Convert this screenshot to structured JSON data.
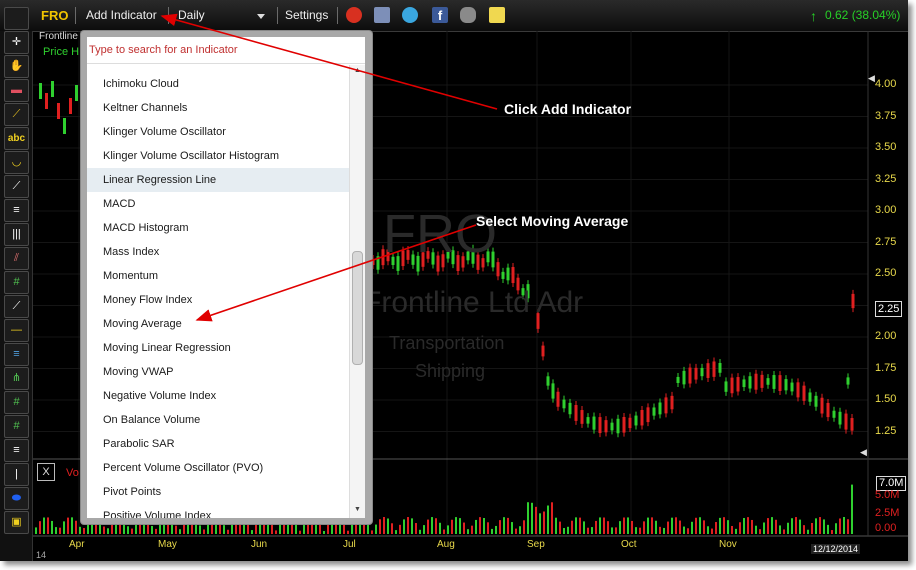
{
  "toolbar": {
    "symbol": "FRO",
    "add_indicator": "Add Indicator",
    "period": "Daily",
    "settings": "Settings",
    "change": "0.62 (38.04%)"
  },
  "chart_header": {
    "company_short": "Frontline",
    "price_label": "Price H"
  },
  "watermark": {
    "symbol": "FRO",
    "company": "Frontline Ltd Adr",
    "sector": "Transportation",
    "industry": "Shipping"
  },
  "price_axis": [
    "4.00",
    "3.75",
    "3.50",
    "3.25",
    "3.00",
    "2.75",
    "2.50",
    "2.25",
    "2.00",
    "1.75",
    "1.50",
    "1.25"
  ],
  "volume_panel": {
    "label": "Vo",
    "close_label": "X"
  },
  "volume_axis": [
    "7.0M",
    "5.0M",
    "2.5M",
    "0.00"
  ],
  "months": [
    "Apr",
    "May",
    "Jun",
    "Jul",
    "Aug",
    "Sep",
    "Oct",
    "Nov"
  ],
  "date_label": "12/12/2014",
  "corner_label": "14",
  "indicator_search": {
    "placeholder": "Type to search for an Indicator"
  },
  "indicators": [
    "Ichimoku Cloud",
    "Keltner Channels",
    "Klinger Volume Oscillator",
    "Klinger Volume Oscillator Histogram",
    "Linear Regression Line",
    "MACD",
    "MACD Histogram",
    "Mass Index",
    "Momentum",
    "Money Flow Index",
    "Moving Average",
    "Moving Linear Regression",
    "Moving VWAP",
    "Negative Volume Index",
    "On Balance Volume",
    "Parabolic SAR",
    "Percent Volume Oscillator (PVO)",
    "Pivot Points",
    "Positive Volume Index"
  ],
  "callouts": {
    "add_indicator": "Click Add Indicator",
    "moving_average": "Select Moving Average"
  },
  "colors": {
    "up": "#2fd02f",
    "down": "#e02020",
    "axis": "#e8d94b",
    "change": "#27d027"
  }
}
